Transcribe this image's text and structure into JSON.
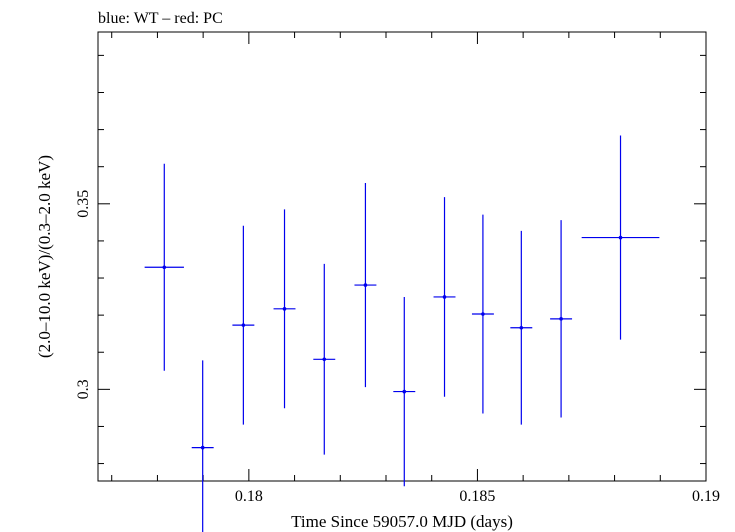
{
  "chart_data": {
    "type": "scatter",
    "title": "blue: WT – red: PC",
    "xlabel": "Time Since 59057.0 MJD (days)",
    "ylabel": "(2.0–10.0 keV)/(0.3–2.0 keV)",
    "xlim": [
      0.1767,
      0.19
    ],
    "ylim": [
      0.2753,
      0.3963
    ],
    "x_ticks": [
      0.18,
      0.185,
      0.19
    ],
    "x_tick_labels": [
      "0.18",
      "0.185",
      "0.19"
    ],
    "y_ticks": [
      0.3,
      0.35
    ],
    "y_tick_labels": [
      "0.3",
      "0.35"
    ],
    "grid": false,
    "series": [
      {
        "color": "#0000ee",
        "points": [
          {
            "x": 0.17815,
            "xerr": 0.00043,
            "y": 0.3329,
            "yerr": 0.0279
          },
          {
            "x": 0.17899,
            "xerr": 0.00024,
            "y": 0.2843,
            "yerr": 0.0235
          },
          {
            "x": 0.17988,
            "xerr": 0.00024,
            "y": 0.3173,
            "yerr": 0.0268
          },
          {
            "x": 0.18078,
            "xerr": 0.00024,
            "y": 0.3217,
            "yerr": 0.0268
          },
          {
            "x": 0.18165,
            "xerr": 0.00024,
            "y": 0.3081,
            "yerr": 0.0257
          },
          {
            "x": 0.18255,
            "xerr": 0.00024,
            "y": 0.3281,
            "yerr": 0.0275
          },
          {
            "x": 0.1834,
            "xerr": 0.00024,
            "y": 0.2994,
            "yerr": 0.0255
          },
          {
            "x": 0.18428,
            "xerr": 0.00024,
            "y": 0.3249,
            "yerr": 0.0269
          },
          {
            "x": 0.18512,
            "xerr": 0.00024,
            "y": 0.3203,
            "yerr": 0.0268
          },
          {
            "x": 0.18596,
            "xerr": 0.00024,
            "y": 0.3166,
            "yerr": 0.0261
          },
          {
            "x": 0.18683,
            "xerr": 0.00024,
            "y": 0.319,
            "yerr": 0.0266
          },
          {
            "x": 0.18813,
            "xerr": 0.00085,
            "y": 0.3409,
            "yerr": 0.0275
          }
        ]
      }
    ]
  }
}
